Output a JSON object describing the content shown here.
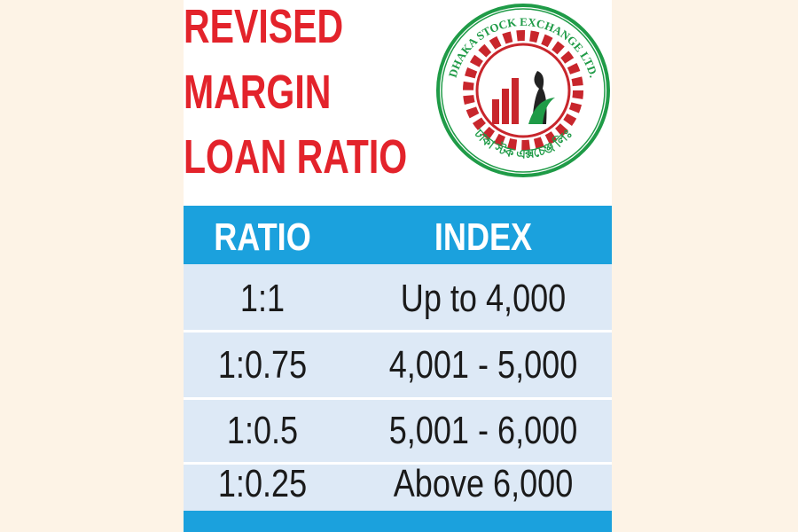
{
  "header": {
    "title_lines": [
      "REVISED",
      "MARGIN",
      "LOAN RATIO"
    ]
  },
  "logo": {
    "name": "DHAKA STOCK EXCHANGE LTD.",
    "name_bengali": "ঢাকা স্টক এক্সচেঞ্জ লিঃ"
  },
  "table": {
    "columns": [
      "RATIO",
      "INDEX"
    ],
    "rows": [
      [
        "1:1",
        "Up to 4,000"
      ],
      [
        "1:0.75",
        "4,001 - 5,000"
      ],
      [
        "1:0.5",
        "5,001 - 6,000"
      ],
      [
        "1:0.25",
        "Above 6,000"
      ]
    ]
  }
}
